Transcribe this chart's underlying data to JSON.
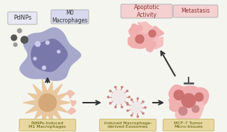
{
  "title": "",
  "labels": {
    "pdnps": "PdNPs",
    "m0": "M0\nMacrophages",
    "apoptotic": "Apoptotic\nActivity",
    "metastasis": "Metastasis",
    "m1": "PdNPs-Induced\nM1 Macrophages",
    "exosomes": "Induced Macrophage-\nderived Exosomes",
    "mcf7": "MCF-7 Tumor\nMicro-tissues"
  },
  "colors": {
    "bg_color": "#f5f5f0",
    "macrophage_m0_outer": "#a8a8cc",
    "macrophage_m0_inner": "#9090bb",
    "macrophage_m0_nucleus": "#7878aa",
    "macrophage_m1_outer": "#e8c8a0",
    "macrophage_m1_inner": "#d4a878",
    "tumor_pink_light": "#f0b0b0",
    "tumor_pink_dark": "#cc7070",
    "tumor_cluster": "#e89090",
    "exosome_body": "#f0e8e8",
    "exosome_spike": "#cc8888",
    "arrow_color": "#333333",
    "label_box_pdnps": "#e8e8f5",
    "label_box_m0": "#d8d8ee",
    "label_box_apoptotic": "#f5d0d0",
    "label_box_metastasis": "#f5d0d0",
    "label_box_bottom": "#e8d8a0",
    "pdnps_dot_dark": "#555555",
    "pdnps_dot_light": "#999999",
    "inhibit_bar": "#555555",
    "m0_dot": "#ccccee",
    "m1_blob": "#f0c0b0"
  }
}
